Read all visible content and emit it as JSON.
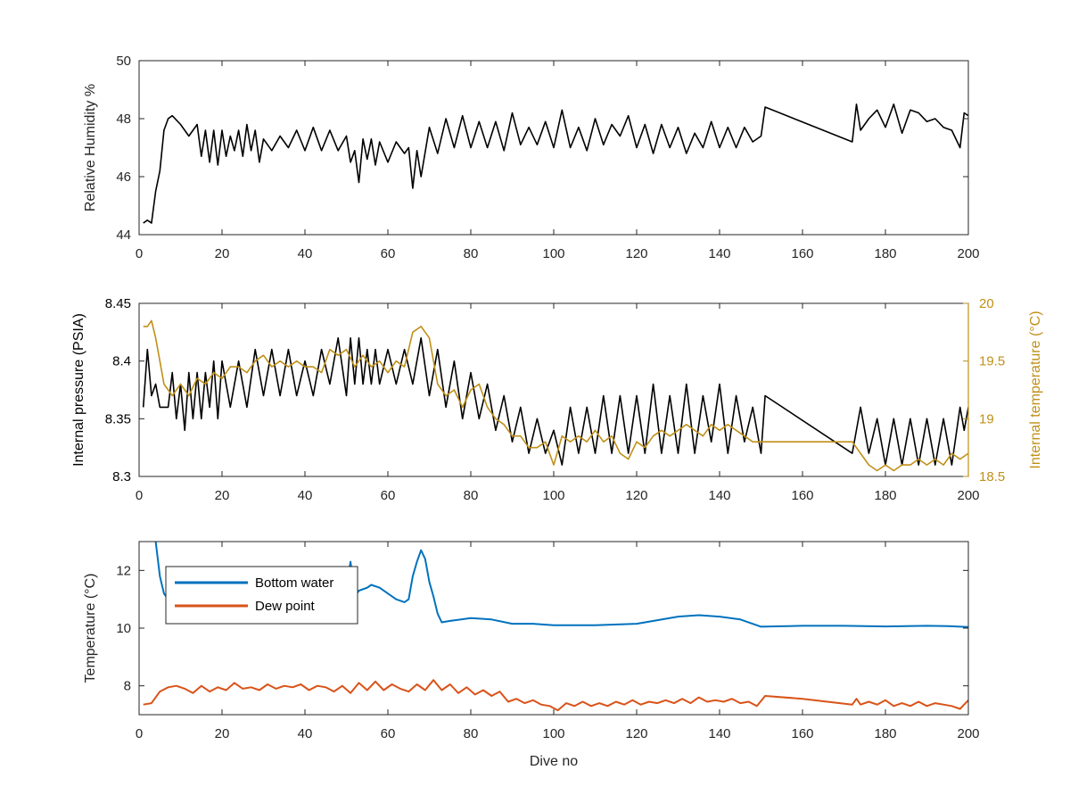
{
  "colors": {
    "black": "#000000",
    "gold": "#C09018",
    "blue": "#0072BD",
    "orange": "#D95319",
    "axis": "#262626"
  },
  "chart_data": [
    {
      "type": "line",
      "ylabel": "Relative Humidity %",
      "xlim": [
        0,
        200
      ],
      "ylim": [
        44,
        50
      ],
      "xticks": [
        0,
        20,
        40,
        60,
        80,
        100,
        120,
        140,
        160,
        180,
        200
      ],
      "yticks": [
        44,
        46,
        48,
        50
      ],
      "series": [
        {
          "color": "black",
          "x": [
            1,
            2,
            3,
            4,
            5,
            6,
            7,
            8,
            10,
            12,
            14,
            15,
            16,
            17,
            18,
            19,
            20,
            21,
            22,
            23,
            24,
            25,
            26,
            27,
            28,
            29,
            30,
            32,
            34,
            36,
            38,
            40,
            42,
            44,
            46,
            48,
            50,
            51,
            52,
            53,
            54,
            55,
            56,
            57,
            58,
            60,
            62,
            64,
            65,
            66,
            67,
            68,
            70,
            72,
            74,
            76,
            78,
            80,
            82,
            84,
            86,
            88,
            90,
            92,
            94,
            96,
            98,
            100,
            102,
            104,
            106,
            108,
            110,
            112,
            114,
            116,
            118,
            120,
            122,
            124,
            126,
            128,
            130,
            132,
            134,
            136,
            138,
            140,
            142,
            144,
            146,
            148,
            150,
            151,
            172,
            173,
            174,
            176,
            178,
            180,
            182,
            184,
            186,
            188,
            190,
            192,
            194,
            196,
            198,
            199,
            200
          ],
          "y": [
            44.4,
            44.5,
            44.4,
            45.5,
            46.2,
            47.6,
            48.0,
            48.1,
            47.8,
            47.4,
            47.8,
            46.7,
            47.6,
            46.5,
            47.6,
            46.4,
            47.6,
            46.7,
            47.4,
            46.9,
            47.6,
            46.7,
            47.8,
            46.9,
            47.6,
            46.5,
            47.3,
            46.9,
            47.4,
            47.0,
            47.6,
            46.9,
            47.7,
            46.9,
            47.6,
            46.9,
            47.4,
            46.5,
            46.9,
            45.8,
            47.3,
            46.6,
            47.3,
            46.4,
            47.2,
            46.5,
            47.2,
            46.8,
            47.0,
            45.6,
            46.9,
            46.0,
            47.7,
            46.8,
            48.0,
            47.0,
            48.1,
            47.0,
            47.9,
            47.0,
            47.9,
            46.9,
            48.2,
            47.1,
            47.7,
            47.1,
            47.9,
            47.0,
            48.3,
            47.0,
            47.7,
            46.9,
            48.0,
            47.1,
            47.8,
            47.4,
            48.1,
            47.0,
            47.8,
            46.8,
            47.8,
            47.0,
            47.7,
            46.8,
            47.5,
            47.0,
            47.9,
            47.0,
            47.7,
            47.0,
            47.7,
            47.2,
            47.4,
            48.4,
            47.2,
            48.5,
            47.6,
            48.0,
            48.3,
            47.7,
            48.5,
            47.5,
            48.3,
            48.2,
            47.9,
            48.0,
            47.7,
            47.6,
            47.0,
            48.2,
            48.1
          ]
        }
      ]
    },
    {
      "type": "line",
      "ylabel": "Internal pressure (PSIA)",
      "y2label": "Internal temperature (°C)",
      "xlim": [
        0,
        200
      ],
      "ylim": [
        8.3,
        8.45
      ],
      "y2lim": [
        18.5,
        20
      ],
      "xticks": [
        0,
        20,
        40,
        60,
        80,
        100,
        120,
        140,
        160,
        180,
        200
      ],
      "yticks": [
        8.3,
        8.35,
        8.4,
        8.45
      ],
      "y2ticks": [
        18.5,
        19,
        19.5,
        20
      ],
      "series": [
        {
          "color": "black",
          "axis": "left",
          "x": [
            1,
            2,
            3,
            4,
            5,
            6,
            7,
            8,
            9,
            10,
            11,
            12,
            13,
            14,
            15,
            16,
            17,
            18,
            19,
            20,
            22,
            24,
            26,
            28,
            30,
            32,
            34,
            36,
            38,
            40,
            42,
            44,
            46,
            48,
            50,
            51,
            52,
            53,
            54,
            55,
            56,
            57,
            58,
            60,
            62,
            64,
            66,
            68,
            70,
            72,
            74,
            76,
            78,
            80,
            82,
            84,
            86,
            88,
            90,
            92,
            94,
            96,
            98,
            100,
            102,
            104,
            106,
            108,
            110,
            112,
            114,
            116,
            118,
            120,
            122,
            124,
            126,
            128,
            130,
            132,
            134,
            136,
            138,
            140,
            142,
            144,
            146,
            148,
            150,
            151,
            172,
            174,
            176,
            178,
            180,
            182,
            184,
            186,
            188,
            190,
            192,
            194,
            196,
            198,
            199,
            200
          ],
          "y": [
            8.36,
            8.41,
            8.37,
            8.38,
            8.36,
            8.36,
            8.36,
            8.39,
            8.35,
            8.38,
            8.34,
            8.39,
            8.35,
            8.39,
            8.35,
            8.39,
            8.36,
            8.4,
            8.35,
            8.4,
            8.36,
            8.4,
            8.36,
            8.41,
            8.37,
            8.41,
            8.37,
            8.41,
            8.37,
            8.4,
            8.37,
            8.41,
            8.38,
            8.42,
            8.37,
            8.42,
            8.38,
            8.42,
            8.38,
            8.41,
            8.38,
            8.41,
            8.38,
            8.41,
            8.38,
            8.41,
            8.38,
            8.42,
            8.37,
            8.41,
            8.36,
            8.4,
            8.35,
            8.39,
            8.35,
            8.38,
            8.34,
            8.37,
            8.33,
            8.36,
            8.32,
            8.35,
            8.32,
            8.34,
            8.31,
            8.36,
            8.32,
            8.36,
            8.32,
            8.37,
            8.32,
            8.37,
            8.32,
            8.37,
            8.32,
            8.38,
            8.32,
            8.37,
            8.32,
            8.38,
            8.32,
            8.37,
            8.33,
            8.38,
            8.32,
            8.37,
            8.33,
            8.36,
            8.32,
            8.37,
            8.32,
            8.36,
            8.32,
            8.35,
            8.31,
            8.35,
            8.31,
            8.35,
            8.31,
            8.35,
            8.31,
            8.35,
            8.31,
            8.36,
            8.34,
            8.36
          ]
        },
        {
          "color": "gold",
          "axis": "right",
          "x": [
            1,
            2,
            3,
            4,
            5,
            6,
            7,
            8,
            10,
            12,
            14,
            16,
            18,
            20,
            22,
            24,
            26,
            28,
            30,
            32,
            34,
            36,
            38,
            40,
            42,
            44,
            46,
            48,
            50,
            52,
            54,
            56,
            58,
            60,
            62,
            64,
            66,
            68,
            70,
            72,
            74,
            76,
            78,
            80,
            82,
            84,
            86,
            88,
            90,
            92,
            94,
            96,
            98,
            100,
            102,
            104,
            106,
            108,
            110,
            112,
            114,
            116,
            118,
            120,
            122,
            124,
            126,
            128,
            130,
            132,
            134,
            136,
            138,
            140,
            142,
            144,
            146,
            148,
            150,
            172,
            174,
            176,
            178,
            180,
            182,
            184,
            186,
            188,
            190,
            192,
            194,
            196,
            198,
            200
          ],
          "y": [
            19.8,
            19.8,
            19.85,
            19.7,
            19.5,
            19.3,
            19.25,
            19.2,
            19.3,
            19.2,
            19.35,
            19.3,
            19.4,
            19.35,
            19.45,
            19.45,
            19.4,
            19.5,
            19.55,
            19.45,
            19.5,
            19.45,
            19.5,
            19.45,
            19.45,
            19.4,
            19.6,
            19.55,
            19.6,
            19.45,
            19.55,
            19.45,
            19.5,
            19.4,
            19.5,
            19.45,
            19.75,
            19.8,
            19.7,
            19.3,
            19.2,
            19.25,
            19.1,
            19.25,
            19.3,
            19.1,
            19.0,
            18.95,
            18.85,
            18.85,
            18.75,
            18.75,
            18.8,
            18.6,
            18.85,
            18.8,
            18.85,
            18.8,
            18.9,
            18.8,
            18.85,
            18.7,
            18.65,
            18.8,
            18.75,
            18.85,
            18.9,
            18.85,
            18.9,
            18.95,
            18.9,
            18.85,
            18.95,
            18.9,
            18.95,
            18.9,
            18.85,
            18.8,
            18.8,
            18.8,
            18.7,
            18.6,
            18.55,
            18.6,
            18.55,
            18.6,
            18.6,
            18.65,
            18.6,
            18.65,
            18.6,
            18.7,
            18.65,
            18.7
          ]
        }
      ]
    },
    {
      "type": "line",
      "xlabel": "Dive no",
      "ylabel": "Temperature (°C)",
      "xlim": [
        0,
        200
      ],
      "ylim": [
        7,
        13
      ],
      "xticks": [
        0,
        20,
        40,
        60,
        80,
        100,
        120,
        140,
        160,
        180,
        200
      ],
      "yticks": [
        8,
        10,
        12
      ],
      "legend": "top-left",
      "series": [
        {
          "name": "Bottom water",
          "color": "blue",
          "x": [
            4,
            5,
            6,
            7,
            8,
            10,
            14,
            20,
            30,
            40,
            45,
            48,
            50,
            51,
            52,
            53,
            55,
            56,
            58,
            60,
            62,
            64,
            65,
            66,
            67,
            68,
            69,
            70,
            71,
            72,
            73,
            75,
            80,
            85,
            90,
            95,
            100,
            110,
            120,
            130,
            135,
            140,
            145,
            150,
            160,
            170,
            180,
            190,
            195,
            200
          ],
          "y": [
            13,
            11.8,
            11.2,
            11.0,
            11.05,
            11.1,
            11.2,
            11.2,
            11.2,
            11.2,
            11.25,
            11.3,
            11.4,
            12.3,
            11.1,
            11.3,
            11.4,
            11.5,
            11.4,
            11.2,
            11.0,
            10.9,
            11.0,
            11.8,
            12.3,
            12.7,
            12.4,
            11.6,
            11.1,
            10.5,
            10.2,
            10.25,
            10.35,
            10.3,
            10.15,
            10.15,
            10.1,
            10.1,
            10.15,
            10.4,
            10.45,
            10.4,
            10.3,
            10.05,
            10.08,
            10.08,
            10.06,
            10.08,
            10.07,
            10.04
          ]
        },
        {
          "name": "Dew point",
          "color": "orange",
          "x": [
            1,
            3,
            5,
            7,
            9,
            11,
            13,
            15,
            17,
            19,
            21,
            23,
            25,
            27,
            29,
            31,
            33,
            35,
            37,
            39,
            41,
            43,
            45,
            47,
            49,
            51,
            53,
            55,
            57,
            59,
            61,
            63,
            65,
            67,
            69,
            71,
            73,
            75,
            77,
            79,
            81,
            83,
            85,
            87,
            89,
            91,
            93,
            95,
            97,
            99,
            101,
            103,
            105,
            107,
            109,
            111,
            113,
            115,
            117,
            119,
            121,
            123,
            125,
            127,
            129,
            131,
            133,
            135,
            137,
            139,
            141,
            143,
            145,
            147,
            149,
            151,
            160,
            172,
            173,
            174,
            176,
            178,
            180,
            182,
            184,
            186,
            188,
            190,
            192,
            194,
            196,
            198,
            200
          ],
          "y": [
            7.35,
            7.4,
            7.8,
            7.95,
            8.0,
            7.9,
            7.75,
            8.0,
            7.8,
            7.95,
            7.85,
            8.1,
            7.9,
            7.95,
            7.85,
            8.05,
            7.9,
            8.0,
            7.95,
            8.05,
            7.85,
            8.0,
            7.95,
            7.8,
            8.0,
            7.75,
            8.1,
            7.85,
            8.15,
            7.85,
            8.05,
            7.9,
            7.8,
            8.05,
            7.85,
            8.2,
            7.85,
            8.05,
            7.75,
            7.95,
            7.7,
            7.85,
            7.65,
            7.8,
            7.45,
            7.55,
            7.4,
            7.5,
            7.35,
            7.3,
            7.15,
            7.4,
            7.3,
            7.45,
            7.3,
            7.4,
            7.3,
            7.45,
            7.35,
            7.5,
            7.35,
            7.45,
            7.4,
            7.5,
            7.4,
            7.55,
            7.4,
            7.6,
            7.45,
            7.5,
            7.45,
            7.55,
            7.4,
            7.45,
            7.3,
            7.65,
            7.55,
            7.35,
            7.55,
            7.35,
            7.45,
            7.35,
            7.5,
            7.3,
            7.4,
            7.3,
            7.45,
            7.3,
            7.4,
            7.35,
            7.3,
            7.2,
            7.5
          ]
        }
      ]
    }
  ]
}
